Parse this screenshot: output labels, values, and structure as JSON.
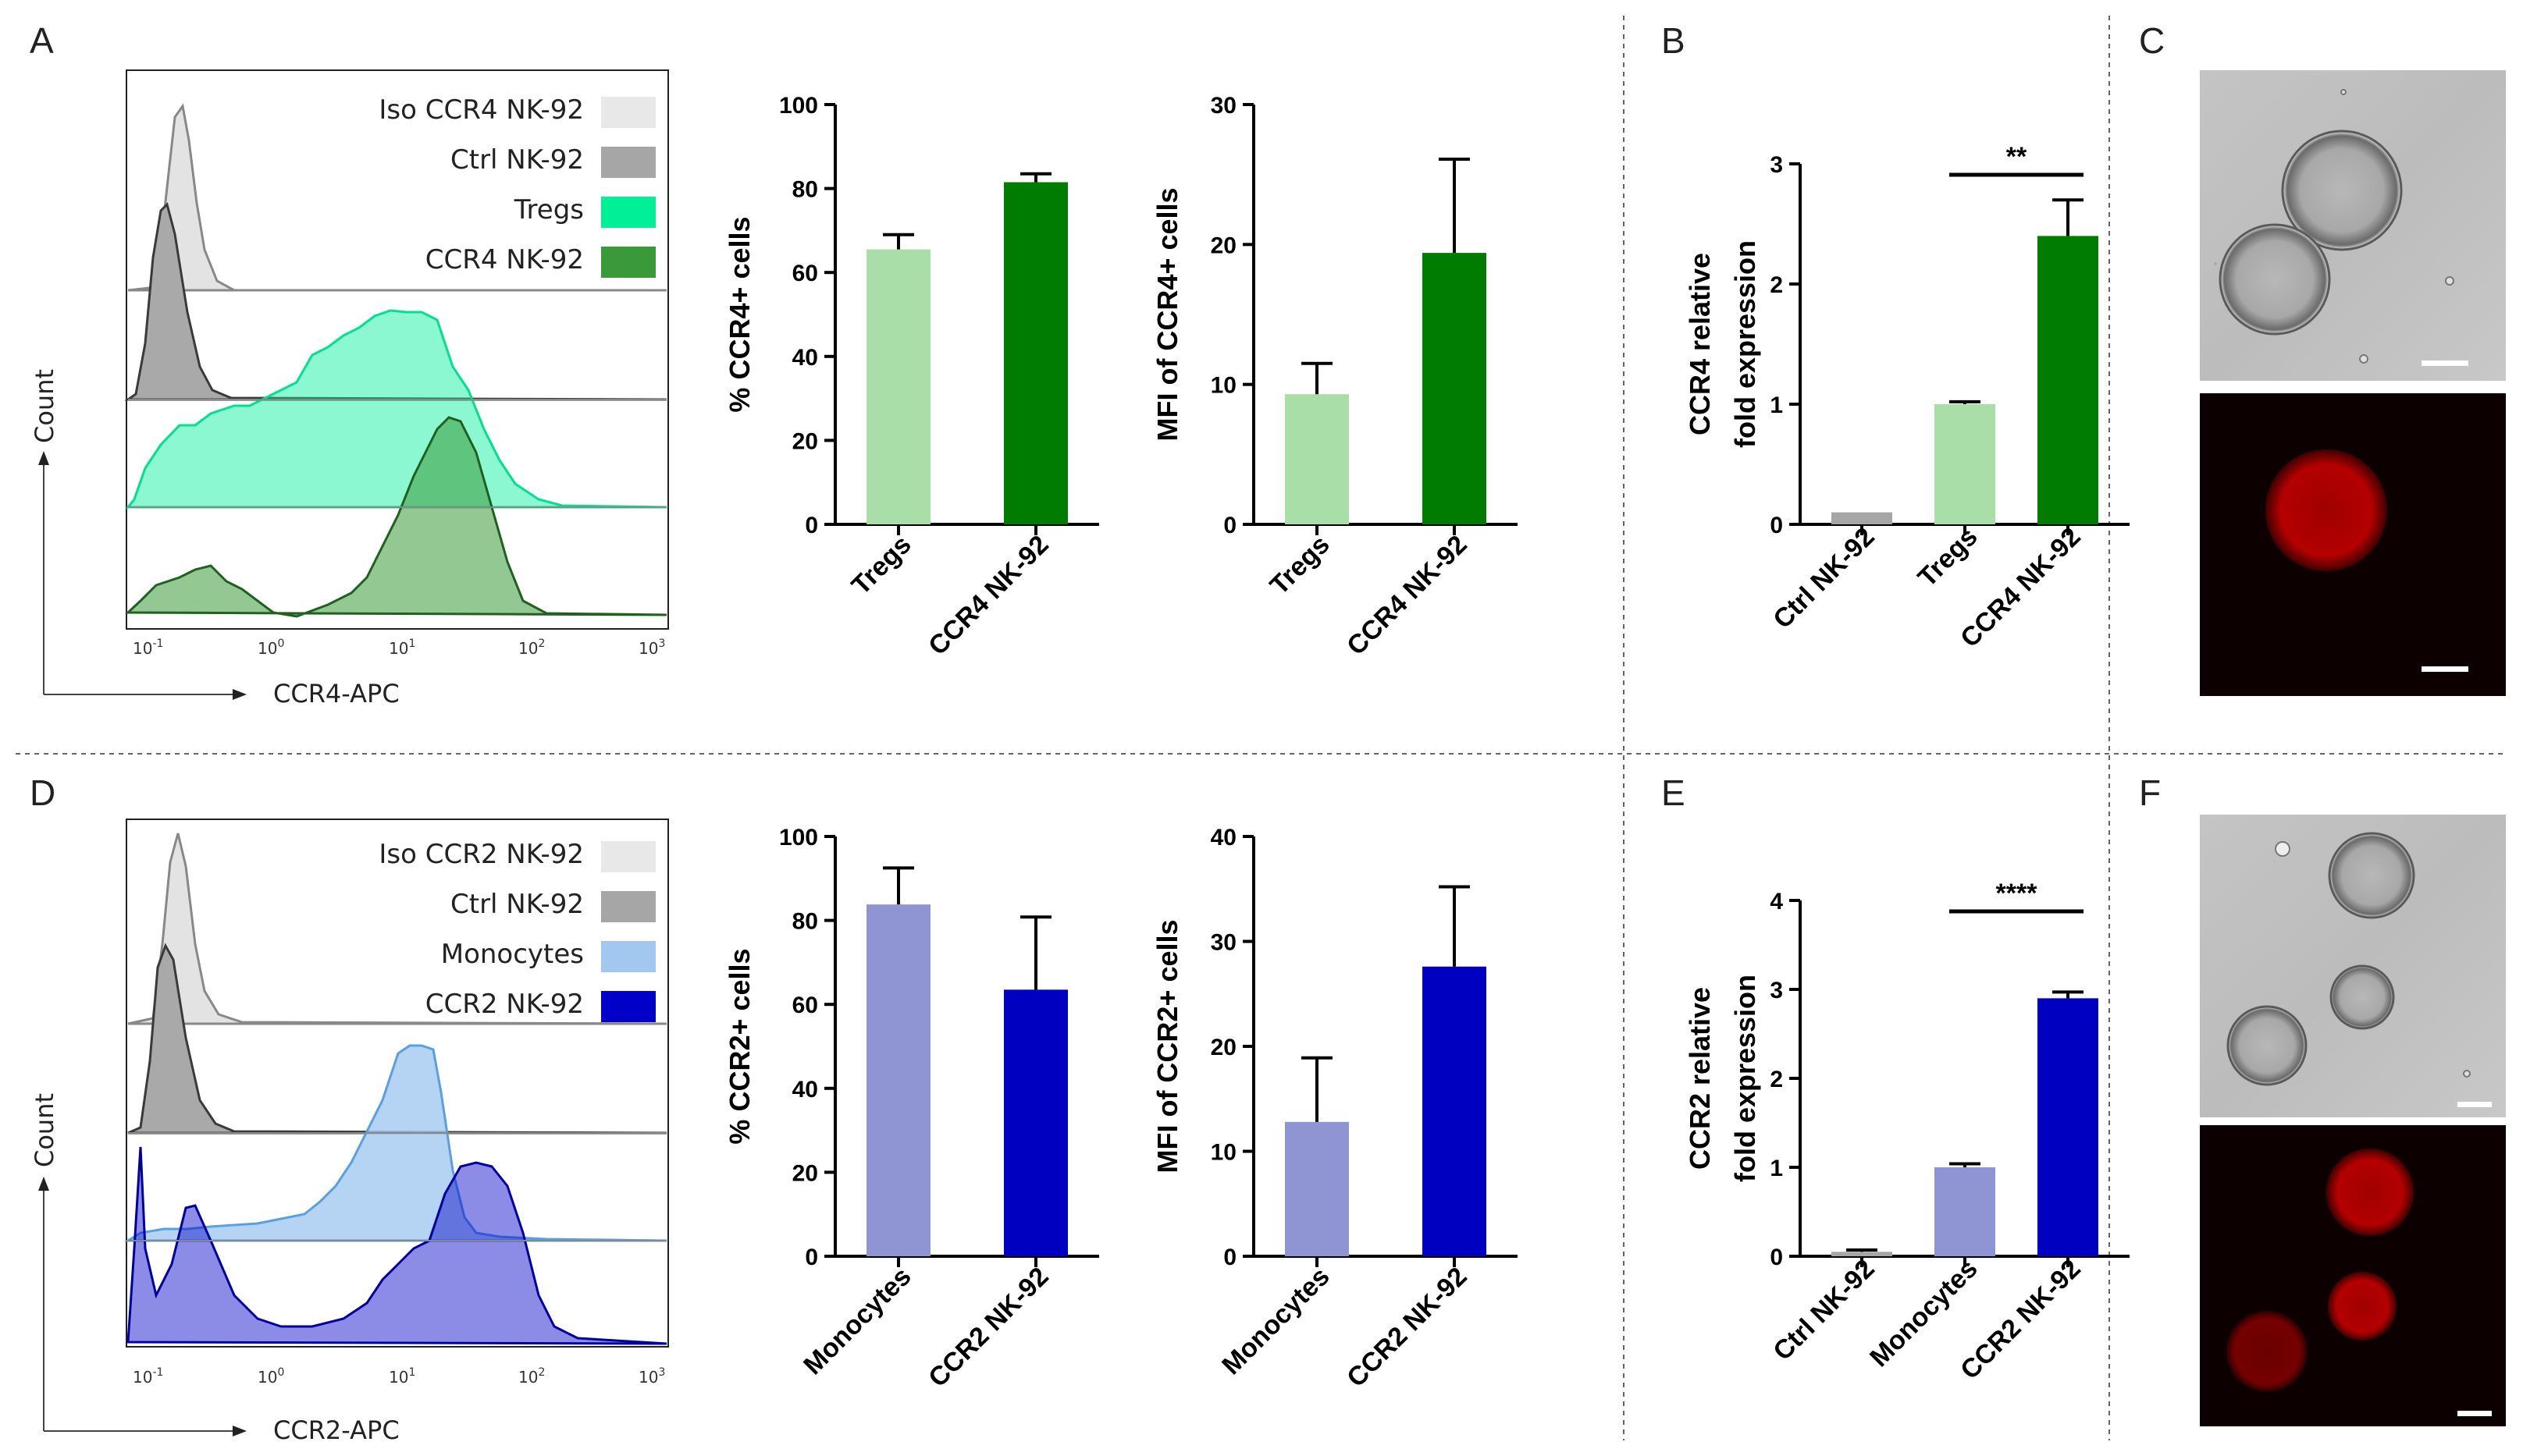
{
  "panels": {
    "A": "A",
    "B": "B",
    "C": "C",
    "D": "D",
    "E": "E",
    "F": "F"
  },
  "colors": {
    "tregs": "#a9dea9",
    "ccr4": "#007d00",
    "monocytes": "#8e95d2",
    "ccr2": "#0000c0",
    "ctrl": "#a6a6a6",
    "hist_iso": "#e3e3e3",
    "hist_ctrl": "#a9a9a9",
    "hist_tregs": "#00f098",
    "hist_ccr4": "#3a9a3a",
    "hist_mono": "#a3c8ef",
    "hist_ccr2": "#0000c8"
  },
  "histograms": [
    {
      "id": "A",
      "xlabel": "CCR4-APC",
      "ylabel": "Count",
      "xticks": [
        "10-1",
        "100",
        "101",
        "102",
        "103"
      ],
      "legend": [
        {
          "label": "Iso CCR4 NK-92",
          "color": "#e8e8e8"
        },
        {
          "label": "Ctrl NK-92",
          "color": "#a6a6a6"
        },
        {
          "label": "Tregs",
          "color": "#00f098"
        },
        {
          "label": "CCR4 NK-92",
          "color": "#3a9a3a"
        }
      ]
    },
    {
      "id": "D",
      "xlabel": "CCR2-APC",
      "ylabel": "Count",
      "xticks": [
        "10-1",
        "100",
        "101",
        "102",
        "103"
      ],
      "legend": [
        {
          "label": "Iso CCR2 NK-92",
          "color": "#e8e8e8"
        },
        {
          "label": "Ctrl NK-92",
          "color": "#a6a6a6"
        },
        {
          "label": "Monocytes",
          "color": "#a3c8ef"
        },
        {
          "label": "CCR2 NK-92",
          "color": "#0000c8"
        }
      ]
    }
  ],
  "chart_data": [
    {
      "id": "A-pct",
      "type": "bar",
      "title": "",
      "ylabel": "% CCR4+ cells",
      "categories": [
        "Tregs",
        "CCR4 NK-92"
      ],
      "values": [
        65.5,
        81.5
      ],
      "errors": [
        3.5,
        2.0
      ],
      "colors": [
        "#a9dea9",
        "#007d00"
      ],
      "ylim": [
        0,
        100
      ],
      "yticks": [
        0,
        20,
        40,
        60,
        80,
        100
      ]
    },
    {
      "id": "A-mfi",
      "type": "bar",
      "title": "",
      "ylabel": "MFI of CCR4+ cells",
      "categories": [
        "Tregs",
        "CCR4 NK-92"
      ],
      "values": [
        9.3,
        19.4
      ],
      "errors": [
        2.2,
        6.7
      ],
      "colors": [
        "#a9dea9",
        "#007d00"
      ],
      "ylim": [
        0,
        30
      ],
      "yticks": [
        0,
        10,
        20,
        30
      ]
    },
    {
      "id": "B",
      "type": "bar",
      "title": "",
      "ylabel": [
        "CCR4 relative",
        "fold expression"
      ],
      "categories": [
        "Ctrl NK-92",
        "Tregs",
        "CCR4 NK-92"
      ],
      "values": [
        0.1,
        1.0,
        2.4
      ],
      "errors": [
        0.0,
        0.02,
        0.3
      ],
      "colors": [
        "#a6a6a6",
        "#a9dea9",
        "#007d00"
      ],
      "ylim": [
        0,
        3
      ],
      "yticks": [
        0,
        1,
        2,
        3
      ],
      "significance": {
        "from": 1,
        "to": 2,
        "label": "**"
      }
    },
    {
      "id": "D-pct",
      "type": "bar",
      "title": "",
      "ylabel": "% CCR2+ cells",
      "categories": [
        "Monocytes",
        "CCR2 NK-92"
      ],
      "values": [
        83.8,
        63.5
      ],
      "errors": [
        8.7,
        17.3
      ],
      "colors": [
        "#8e95d2",
        "#0000c0"
      ],
      "ylim": [
        0,
        100
      ],
      "yticks": [
        0,
        20,
        40,
        60,
        80,
        100
      ]
    },
    {
      "id": "D-mfi",
      "type": "bar",
      "title": "",
      "ylabel": "MFI of CCR2+ cells",
      "categories": [
        "Monocytes",
        "CCR2 NK-92"
      ],
      "values": [
        12.8,
        27.6
      ],
      "errors": [
        6.1,
        7.6
      ],
      "colors": [
        "#8e95d2",
        "#0000c0"
      ],
      "ylim": [
        0,
        40
      ],
      "yticks": [
        0,
        10,
        20,
        30,
        40
      ]
    },
    {
      "id": "E",
      "type": "bar",
      "title": "",
      "ylabel": [
        "CCR2 relative",
        "fold expression"
      ],
      "categories": [
        "Ctrl NK-92",
        "Monocytes",
        "CCR2 NK-92"
      ],
      "values": [
        0.05,
        1.0,
        2.9
      ],
      "errors": [
        0.02,
        0.04,
        0.07
      ],
      "colors": [
        "#a6a6a6",
        "#8e95d2",
        "#0000c0"
      ],
      "ylim": [
        0,
        4
      ],
      "yticks": [
        0,
        1,
        2,
        3,
        4
      ],
      "significance": {
        "from": 1,
        "to": 2,
        "label": "****"
      }
    }
  ]
}
